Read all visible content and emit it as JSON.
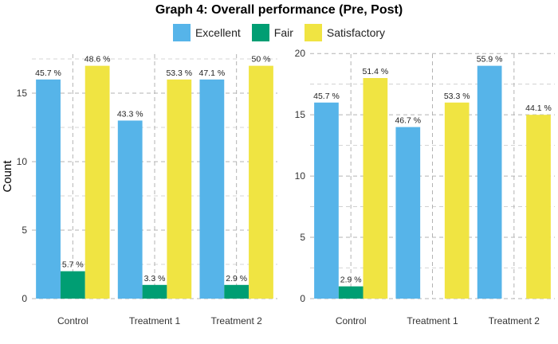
{
  "title": "Graph 4: Overall performance (Pre, Post)",
  "legend": [
    {
      "label": "Excellent",
      "color": "#56B4E9"
    },
    {
      "label": "Fair",
      "color": "#009E73"
    },
    {
      "label": "Satisfactory",
      "color": "#F0E442"
    }
  ],
  "chart_data": [
    {
      "type": "bar",
      "panel": "Pre",
      "ylabel": "Count",
      "xlabel": "",
      "categories": [
        "Control",
        "Treatment 1",
        "Treatment 2"
      ],
      "series": [
        {
          "name": "Excellent",
          "values": [
            16,
            13,
            16
          ],
          "labels": [
            "45.7 %",
            "43.3 %",
            "47.1 %"
          ]
        },
        {
          "name": "Fair",
          "values": [
            2,
            1,
            1
          ],
          "labels": [
            "5.7 %",
            "3.3 %",
            "2.9 %"
          ]
        },
        {
          "name": "Satisfactory",
          "values": [
            17,
            16,
            17
          ],
          "labels": [
            "48.6 %",
            "53.3 %",
            "50 %"
          ]
        }
      ],
      "ylim": [
        0,
        17.85
      ],
      "yticks": [
        0,
        5,
        10,
        15
      ],
      "grid": true,
      "legend_position": "top"
    },
    {
      "type": "bar",
      "panel": "Post",
      "ylabel": "",
      "xlabel": "",
      "categories": [
        "Control",
        "Treatment 1",
        "Treatment 2"
      ],
      "series": [
        {
          "name": "Excellent",
          "values": [
            16,
            14,
            19
          ],
          "labels": [
            "45.7 %",
            "46.7 %",
            "55.9 %"
          ]
        },
        {
          "name": "Fair",
          "values": [
            1,
            null,
            null
          ],
          "labels": [
            "2.9 %",
            "",
            ""
          ]
        },
        {
          "name": "Satisfactory",
          "values": [
            18,
            16,
            15
          ],
          "labels": [
            "51.4 %",
            "53.3 %",
            "44.1 %"
          ]
        }
      ],
      "ylim": [
        0,
        19.95
      ],
      "yticks": [
        0,
        5,
        10,
        15,
        20
      ],
      "grid": true,
      "legend_position": "top"
    }
  ]
}
